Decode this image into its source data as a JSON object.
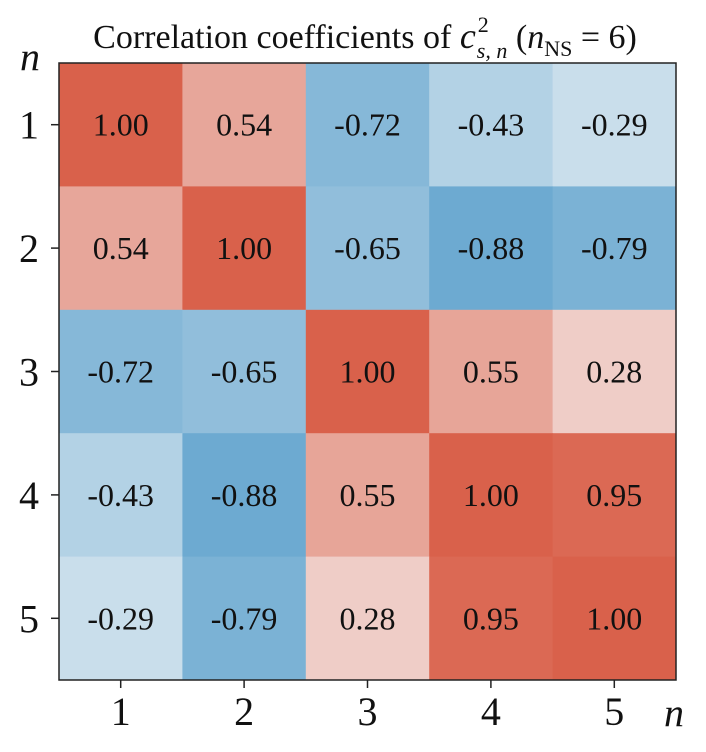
{
  "chart_data": {
    "type": "heatmap",
    "title": {
      "prefix": "Correlation coefficients of ",
      "symbol": "c",
      "symbol_sup": "2",
      "symbol_sub": "s, n",
      "paren_open": " (",
      "n_symbol": "n",
      "n_sub": "NS",
      "equals_value": " = 6)"
    },
    "xlabel": "n",
    "ylabel": "n",
    "x_categories": [
      "1",
      "2",
      "3",
      "4",
      "5"
    ],
    "y_categories": [
      "1",
      "2",
      "3",
      "4",
      "5"
    ],
    "values": [
      [
        1.0,
        0.54,
        -0.72,
        -0.43,
        -0.29
      ],
      [
        0.54,
        1.0,
        -0.65,
        -0.88,
        -0.79
      ],
      [
        -0.72,
        -0.65,
        1.0,
        0.55,
        0.28
      ],
      [
        -0.43,
        -0.88,
        0.55,
        1.0,
        0.95
      ],
      [
        -0.29,
        -0.79,
        0.28,
        0.95,
        1.0
      ]
    ],
    "value_range": [
      -1,
      1
    ],
    "colormap": {
      "negative": "#5aa0cc",
      "neutral": "#f7f7f7",
      "positive": "#d9614b"
    }
  }
}
